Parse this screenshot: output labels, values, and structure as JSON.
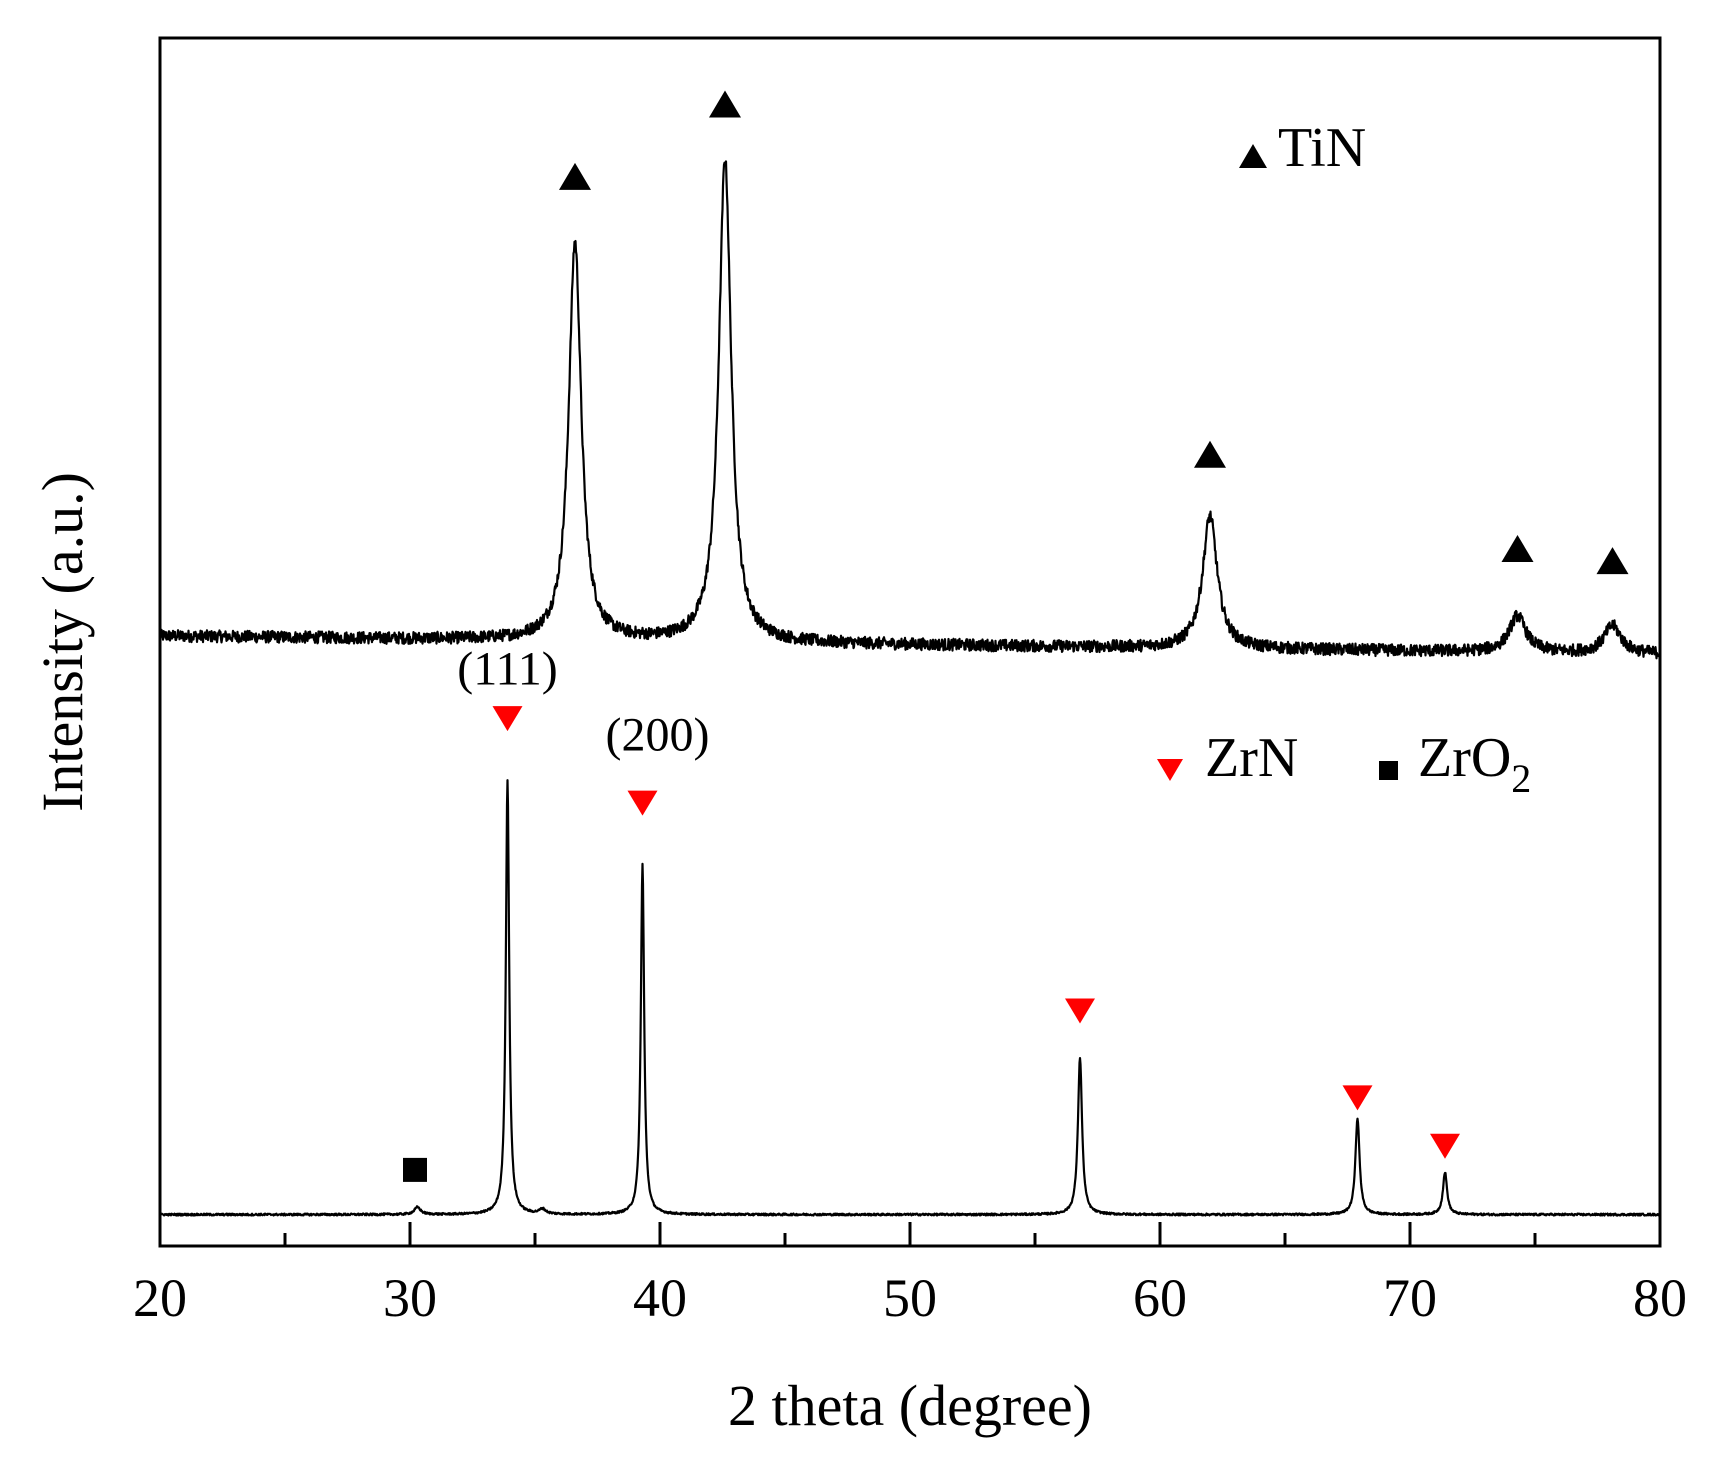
{
  "chart_data": {
    "type": "line",
    "title": "",
    "xlabel": "2 theta (degree)",
    "ylabel": "Intensity (a.u.)",
    "xlim": [
      20,
      80
    ],
    "ylim": [
      0,
      100
    ],
    "xticks": [
      20,
      30,
      40,
      50,
      60,
      70,
      80
    ],
    "x_minor_ticks": [
      25,
      35,
      45,
      55,
      65,
      75
    ],
    "grid": false,
    "series": [
      {
        "name": "TiN",
        "baseline": 50.5,
        "noise": 0.5,
        "tail_drop": 1.5,
        "peaks": [
          {
            "x": 36.6,
            "height": 33.0,
            "width": 0.3
          },
          {
            "x": 42.6,
            "height": 40.0,
            "width": 0.3
          },
          {
            "x": 62.0,
            "height": 11.0,
            "width": 0.35
          },
          {
            "x": 74.3,
            "height": 3.0,
            "width": 0.4
          },
          {
            "x": 78.1,
            "height": 2.3,
            "width": 0.4
          }
        ],
        "color": "#000000"
      },
      {
        "name": "ZrN",
        "baseline": 2.6,
        "noise": 0.08,
        "tail_drop": 0,
        "peaks": [
          {
            "x": 30.3,
            "height": 0.6,
            "width": 0.15
          },
          {
            "x": 33.9,
            "height": 36.0,
            "width": 0.08
          },
          {
            "x": 35.3,
            "height": 0.4,
            "width": 0.15
          },
          {
            "x": 39.3,
            "height": 29.0,
            "width": 0.08
          },
          {
            "x": 56.8,
            "height": 13.0,
            "width": 0.1
          },
          {
            "x": 67.9,
            "height": 8.0,
            "width": 0.1
          },
          {
            "x": 71.4,
            "height": 3.5,
            "width": 0.1
          }
        ],
        "color": "#000000"
      }
    ],
    "markers": [
      {
        "series": "TiN",
        "phase": "TiN",
        "shape": "triangle-up",
        "color": "#000000",
        "x": 36.6,
        "y": 88.5
      },
      {
        "series": "TiN",
        "phase": "TiN",
        "shape": "triangle-up",
        "color": "#000000",
        "x": 42.6,
        "y": 94.5
      },
      {
        "series": "TiN",
        "phase": "TiN",
        "shape": "triangle-up",
        "color": "#000000",
        "x": 62.0,
        "y": 65.5
      },
      {
        "series": "TiN",
        "phase": "TiN",
        "shape": "triangle-up",
        "color": "#000000",
        "x": 74.3,
        "y": 57.7
      },
      {
        "series": "TiN",
        "phase": "TiN",
        "shape": "triangle-up",
        "color": "#000000",
        "x": 78.1,
        "y": 56.7
      },
      {
        "series": "ZrN",
        "phase": "ZrN",
        "shape": "triangle-down",
        "color": "#ff0000",
        "x": 33.9,
        "y": 43.7
      },
      {
        "series": "ZrN",
        "phase": "ZrN",
        "shape": "triangle-down",
        "color": "#ff0000",
        "x": 39.3,
        "y": 36.7
      },
      {
        "series": "ZrN",
        "phase": "ZrN",
        "shape": "triangle-down",
        "color": "#ff0000",
        "x": 56.8,
        "y": 19.5
      },
      {
        "series": "ZrN",
        "phase": "ZrN",
        "shape": "triangle-down",
        "color": "#ff0000",
        "x": 67.9,
        "y": 12.3
      },
      {
        "series": "ZrN",
        "phase": "ZrN",
        "shape": "triangle-down",
        "color": "#ff0000",
        "x": 71.4,
        "y": 8.3
      },
      {
        "series": "ZrN",
        "phase": "ZrO2",
        "shape": "square",
        "color": "#000000",
        "x": 30.2,
        "y": 6.3
      }
    ],
    "annotations": [
      {
        "text": "(111)",
        "x": 33.9,
        "y": 46.5
      },
      {
        "text": "(200)",
        "x": 39.9,
        "y": 41.0
      }
    ],
    "legend": [
      {
        "label": "TiN",
        "subscript": "",
        "shape": "triangle-up",
        "color": "#000000",
        "position": "top-right"
      },
      {
        "label": "ZrN",
        "subscript": "",
        "shape": "triangle-down",
        "color": "#ff0000",
        "position": "middle-right"
      },
      {
        "label": "ZrO",
        "subscript": "2",
        "shape": "square",
        "color": "#000000",
        "position": "middle-right"
      }
    ]
  }
}
